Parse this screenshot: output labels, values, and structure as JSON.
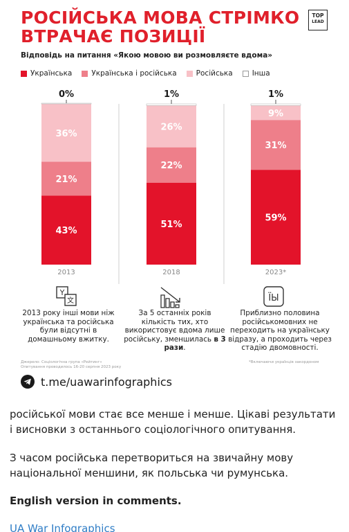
{
  "title": "РОСІЙСЬКА МОВА СТРІМКО ВТРАЧАЄ ПОЗИЦІЇ",
  "logo": {
    "line1": "TOP",
    "line2": "LEAD"
  },
  "subtitle": "Відповідь на питання «Якою мовою ви розмовляєте вдома»",
  "colors": {
    "ukr": "#e3132a",
    "mixed": "#ee7f8a",
    "rus": "#f8c1c7",
    "other": "#ffffff"
  },
  "chart_data": {
    "type": "bar",
    "stacked": true,
    "categories": [
      "2013",
      "2018",
      "2023*"
    ],
    "series": [
      {
        "name": "Українська",
        "values": [
          43,
          51,
          59
        ]
      },
      {
        "name": "Українська і російська",
        "values": [
          21,
          22,
          31
        ]
      },
      {
        "name": "Російська",
        "values": [
          36,
          26,
          9
        ]
      },
      {
        "name": "Інша",
        "values": [
          0,
          1,
          1
        ]
      }
    ],
    "labels": {
      "Українська": [
        "43%",
        "51%",
        "59%"
      ],
      "Українська і російська": [
        "21%",
        "22%",
        "31%"
      ],
      "Російська": [
        "36%",
        "26%",
        "9%"
      ],
      "Інша": [
        "0%",
        "1%",
        "1%"
      ]
    },
    "ylim": [
      0,
      100
    ],
    "legend": "top-left",
    "grid": false
  },
  "notes": [
    {
      "text": "2013 року інші мови ніж українська та російська були відсутні в домашньому вжитку."
    },
    {
      "text_before": "За 5 останніх років кількість тих, хто використовує вдома лише російську, зменшилась ",
      "bold": "в 3 рази",
      "text_after": "."
    },
    {
      "text": "Приблизно половина російськомовних не переходить на українську відразу, а проходить через стадію двомовності."
    }
  ],
  "icons": [
    "language-translate-icon",
    "declining-chart-icon",
    "cyrillic-letters-icon",
    "telegram-icon"
  ],
  "source": {
    "line1": "Джерело: Соціологічна група «Рейтинг»",
    "line2": "Опитування проводилось 16-20 серпня 2023 року"
  },
  "footnote": "*Включаючи українців закордоном",
  "telegram": "t.me/uawarinfographics",
  "post": {
    "p1": "російської мови стає все менше і менше. Цікаві результати і висновки з останнього соціологічного опитування.",
    "p2": "З часом російська перетвориться на звичайну мову національної меншини, як польська чи румунська.",
    "p3": "English version in comments.",
    "p4": "UA War Infographics"
  }
}
